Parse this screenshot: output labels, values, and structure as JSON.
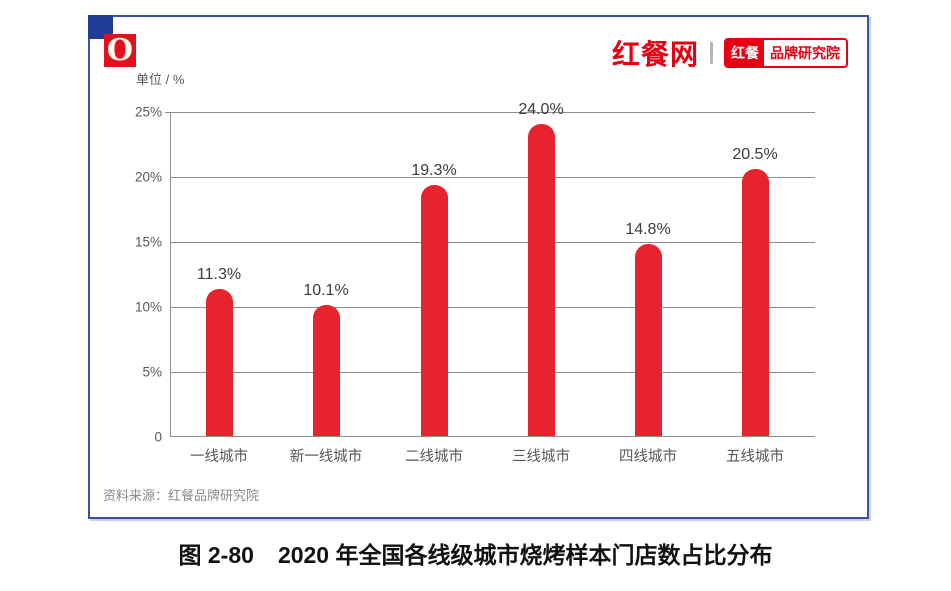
{
  "header": {
    "logo_letter": "O",
    "site_name": "红餐网",
    "divider": "|",
    "badge_left": "红餐",
    "badge_right": "品牌研究院",
    "brand_red": "#E60012"
  },
  "chart_data": {
    "type": "bar",
    "unit_label": "单位 / %",
    "categories": [
      "一线城市",
      "新一线城市",
      "二线城市",
      "三线城市",
      "四线城市",
      "五线城市"
    ],
    "values": [
      11.3,
      10.1,
      19.3,
      24.0,
      14.8,
      20.5
    ],
    "value_labels": [
      "11.3%",
      "10.1%",
      "19.3%",
      "24.0%",
      "14.8%",
      "20.5%"
    ],
    "y_ticks": [
      "25%",
      "20%",
      "15%",
      "10%",
      "5%",
      "0"
    ],
    "ylim": [
      0,
      25
    ],
    "grid": true,
    "legend": "none",
    "bar_color": "#E7232E",
    "frame_color": "#3953A4",
    "source": "资料来源：红餐品牌研究院"
  },
  "caption": {
    "label": "图 2-80",
    "title": "2020 年全国各线级城市烧烤样本门店数占比分布"
  }
}
